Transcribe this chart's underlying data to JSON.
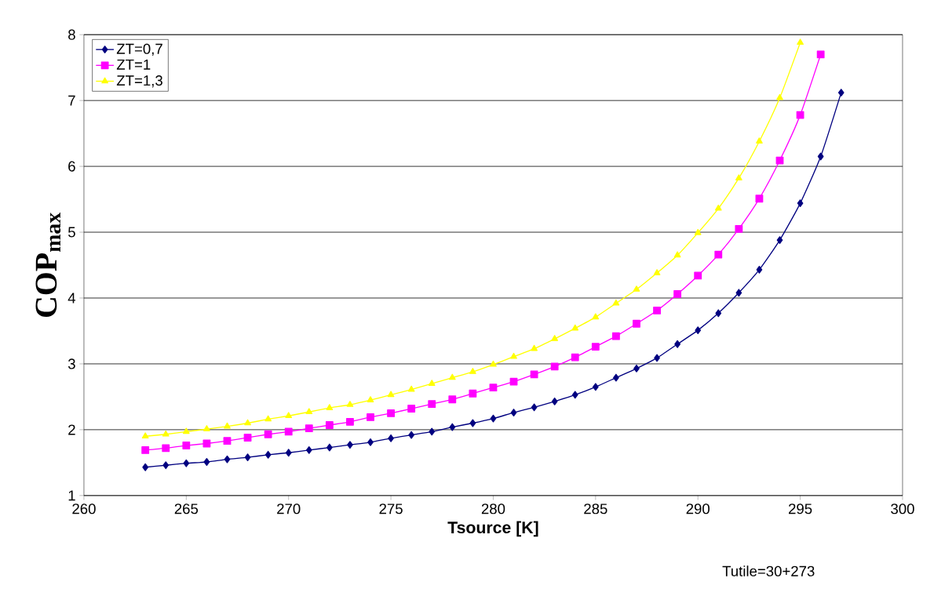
{
  "chart_data": {
    "type": "line",
    "xlabel": "Tsource [K]",
    "ylabel": "COP$_{max}$",
    "xlim": [
      260,
      300
    ],
    "xticks": [
      260,
      265,
      270,
      275,
      280,
      285,
      290,
      295,
      300
    ],
    "ylim": [
      1,
      8
    ],
    "yticks": [
      1,
      2,
      3,
      4,
      5,
      6,
      7,
      8
    ],
    "grid": "y",
    "legend": "top left",
    "x": [
      263,
      264,
      265,
      266,
      267,
      268,
      269,
      270,
      271,
      272,
      273,
      274,
      275,
      276,
      277,
      278,
      279,
      280,
      281,
      282,
      283,
      284,
      285,
      286,
      287,
      288,
      289,
      290,
      291,
      292,
      293,
      294,
      295,
      296,
      297
    ],
    "series": [
      {
        "name": "ZT=0,7",
        "color": "#000080",
        "marker": "diamond",
        "values": [
          1.43,
          1.46,
          1.49,
          1.51,
          1.55,
          1.58,
          1.62,
          1.65,
          1.69,
          1.73,
          1.77,
          1.81,
          1.87,
          1.92,
          1.97,
          2.04,
          2.1,
          2.17,
          2.26,
          2.34,
          2.43,
          2.53,
          2.65,
          2.79,
          2.93,
          3.09,
          3.3,
          3.51,
          3.77,
          4.08,
          4.43,
          4.88,
          5.44,
          6.15,
          7.12
        ]
      },
      {
        "name": "ZT=1",
        "color": "#ff00ff",
        "marker": "square",
        "values": [
          1.69,
          1.72,
          1.76,
          1.79,
          1.83,
          1.88,
          1.93,
          1.97,
          2.02,
          2.07,
          2.12,
          2.19,
          2.25,
          2.32,
          2.39,
          2.46,
          2.55,
          2.64,
          2.73,
          2.84,
          2.96,
          3.1,
          3.26,
          3.42,
          3.61,
          3.81,
          4.06,
          4.34,
          4.66,
          5.05,
          5.51,
          6.09,
          6.78,
          7.7,
          null
        ]
      },
      {
        "name": "ZT=1,3",
        "color": "#ffff00",
        "marker": "triangle",
        "values": [
          1.9,
          1.93,
          1.97,
          2.01,
          2.05,
          2.1,
          2.16,
          2.21,
          2.27,
          2.33,
          2.38,
          2.45,
          2.53,
          2.61,
          2.7,
          2.79,
          2.88,
          2.99,
          3.11,
          3.23,
          3.38,
          3.54,
          3.71,
          3.92,
          4.13,
          4.38,
          4.65,
          4.99,
          5.36,
          5.82,
          6.38,
          7.04,
          7.88,
          null,
          null
        ]
      }
    ],
    "annotations": [
      "Tutile=30+273"
    ]
  }
}
